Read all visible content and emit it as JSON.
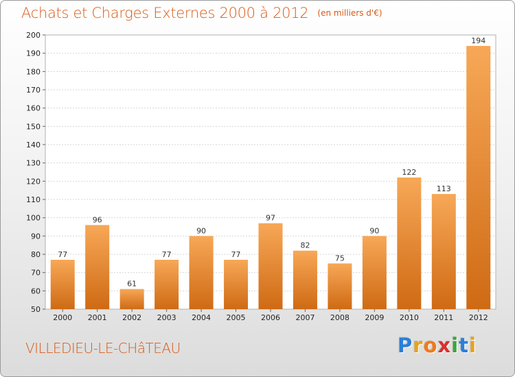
{
  "header": {
    "title": "Achats et Charges Externes 2000 à 2012",
    "subtitle": "(en milliers d'€)"
  },
  "footer": {
    "town": "VILLEDIEU-LE-CHâTEAU",
    "logo_letters": [
      "P",
      "r",
      "o",
      "x",
      "i",
      "t",
      "i"
    ],
    "logo_colors": [
      "#2b7fd6",
      "#e8a21a",
      "#f07a1a",
      "#d9302c",
      "#3aa63a",
      "#2b7fd6",
      "#e8a21a"
    ]
  },
  "colors": {
    "bar_top": "#f7a857",
    "bar_bottom": "#cf6a14",
    "accent": "#d85a14"
  },
  "chart_data": {
    "type": "bar",
    "categories": [
      "2000",
      "2001",
      "2002",
      "2003",
      "2004",
      "2005",
      "2006",
      "2007",
      "2008",
      "2009",
      "2010",
      "2011",
      "2012"
    ],
    "values": [
      77,
      96,
      61,
      77,
      90,
      77,
      97,
      82,
      75,
      90,
      122,
      113,
      194
    ],
    "ylim": [
      50,
      200
    ],
    "yticks": [
      50,
      60,
      70,
      80,
      90,
      100,
      110,
      120,
      130,
      140,
      150,
      160,
      170,
      180,
      190,
      200
    ],
    "grid": true,
    "xlabel": "",
    "ylabel": ""
  }
}
